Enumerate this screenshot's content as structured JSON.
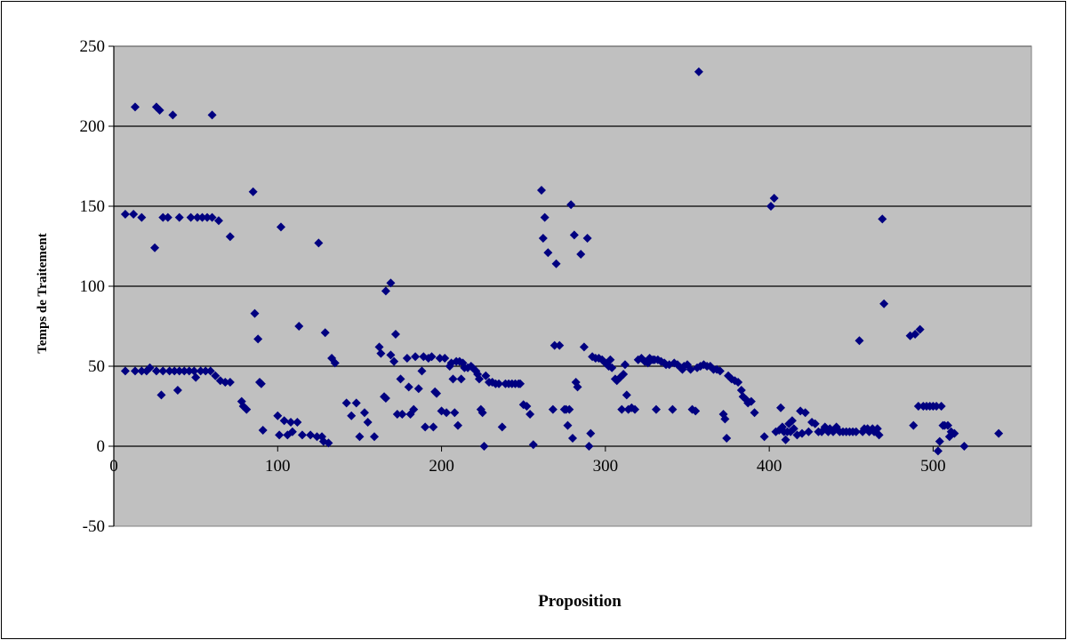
{
  "chart_data": {
    "type": "scatter",
    "title": "",
    "xlabel": "Proposition",
    "ylabel": "Temps de Traitement",
    "xlim": [
      0,
      560
    ],
    "ylim": [
      -50,
      250
    ],
    "x_ticks": [
      0,
      100,
      200,
      300,
      400,
      500
    ],
    "y_ticks": [
      -50,
      0,
      50,
      100,
      150,
      200,
      250
    ],
    "grid": "horizontal",
    "legend": "none",
    "colors": {
      "plot_background": "#c0c0c0",
      "marker": "#000080",
      "gridline": "#000000",
      "frame": "#000000"
    },
    "marker_shape": "diamond",
    "series": [
      {
        "points": [
          [
            7,
            145
          ],
          [
            12,
            145
          ],
          [
            17,
            143
          ],
          [
            25,
            124
          ],
          [
            30,
            143
          ],
          [
            33,
            143
          ],
          [
            40,
            143
          ],
          [
            47,
            143
          ],
          [
            51,
            143
          ],
          [
            54,
            143
          ],
          [
            57,
            143
          ],
          [
            60,
            143
          ],
          [
            64,
            141
          ],
          [
            71,
            131
          ],
          [
            13,
            212
          ],
          [
            26,
            212
          ],
          [
            28,
            210
          ],
          [
            36,
            207
          ],
          [
            60,
            207
          ],
          [
            7,
            47
          ],
          [
            13,
            47
          ],
          [
            17,
            47
          ],
          [
            20,
            47
          ],
          [
            22,
            49
          ],
          [
            26,
            47
          ],
          [
            30,
            47
          ],
          [
            34,
            47
          ],
          [
            37,
            47
          ],
          [
            40,
            47
          ],
          [
            43,
            47
          ],
          [
            46,
            47
          ],
          [
            49,
            47
          ],
          [
            50,
            43
          ],
          [
            53,
            47
          ],
          [
            56,
            47
          ],
          [
            59,
            47
          ],
          [
            62,
            44
          ],
          [
            65,
            41
          ],
          [
            68,
            40
          ],
          [
            71,
            40
          ],
          [
            29,
            32
          ],
          [
            39,
            35
          ],
          [
            78,
            28
          ],
          [
            79,
            25
          ],
          [
            81,
            23
          ],
          [
            85,
            159
          ],
          [
            86,
            83
          ],
          [
            88,
            67
          ],
          [
            89,
            40
          ],
          [
            90,
            39
          ],
          [
            91,
            10
          ],
          [
            102,
            137
          ],
          [
            100,
            19
          ],
          [
            101,
            7
          ],
          [
            104,
            16
          ],
          [
            106,
            7
          ],
          [
            108,
            15
          ],
          [
            109,
            9
          ],
          [
            112,
            15
          ],
          [
            113,
            75
          ],
          [
            115,
            7
          ],
          [
            120,
            7
          ],
          [
            125,
            127
          ],
          [
            124,
            6
          ],
          [
            127,
            6
          ],
          [
            129,
            71
          ],
          [
            128,
            3
          ],
          [
            131,
            2
          ],
          [
            133,
            55
          ],
          [
            135,
            52
          ],
          [
            142,
            27
          ],
          [
            145,
            19
          ],
          [
            148,
            27
          ],
          [
            150,
            6
          ],
          [
            153,
            21
          ],
          [
            155,
            15
          ],
          [
            159,
            6
          ],
          [
            162,
            62
          ],
          [
            163,
            58
          ],
          [
            165,
            31
          ],
          [
            166,
            30
          ],
          [
            166,
            97
          ],
          [
            169,
            102
          ],
          [
            169,
            57
          ],
          [
            171,
            53
          ],
          [
            172,
            70
          ],
          [
            173,
            20
          ],
          [
            175,
            42
          ],
          [
            176,
            20
          ],
          [
            179,
            55
          ],
          [
            180,
            37
          ],
          [
            181,
            20
          ],
          [
            183,
            23
          ],
          [
            184,
            56
          ],
          [
            186,
            36
          ],
          [
            188,
            47
          ],
          [
            189,
            56
          ],
          [
            190,
            12
          ],
          [
            192,
            55
          ],
          [
            194,
            56
          ],
          [
            195,
            12
          ],
          [
            196,
            34
          ],
          [
            197,
            33
          ],
          [
            199,
            55
          ],
          [
            200,
            22
          ],
          [
            202,
            55
          ],
          [
            203,
            21
          ],
          [
            205,
            50
          ],
          [
            206,
            52
          ],
          [
            207,
            42
          ],
          [
            208,
            21
          ],
          [
            209,
            53
          ],
          [
            210,
            13
          ],
          [
            211,
            53
          ],
          [
            212,
            42
          ],
          [
            213,
            52
          ],
          [
            214,
            49
          ],
          [
            216,
            49
          ],
          [
            218,
            50
          ],
          [
            219,
            49
          ],
          [
            221,
            47
          ],
          [
            222,
            45
          ],
          [
            223,
            42
          ],
          [
            224,
            23
          ],
          [
            225,
            21
          ],
          [
            226,
            0
          ],
          [
            227,
            44
          ],
          [
            229,
            40
          ],
          [
            231,
            40
          ],
          [
            233,
            39
          ],
          [
            235,
            39
          ],
          [
            237,
            12
          ],
          [
            239,
            39
          ],
          [
            241,
            39
          ],
          [
            243,
            39
          ],
          [
            245,
            39
          ],
          [
            247,
            39
          ],
          [
            248,
            39
          ],
          [
            250,
            26
          ],
          [
            252,
            25
          ],
          [
            254,
            20
          ],
          [
            256,
            1
          ],
          [
            261,
            160
          ],
          [
            262,
            130
          ],
          [
            263,
            143
          ],
          [
            265,
            121
          ],
          [
            270,
            114
          ],
          [
            268,
            23
          ],
          [
            269,
            63
          ],
          [
            272,
            63
          ],
          [
            275,
            23
          ],
          [
            276,
            23
          ],
          [
            277,
            13
          ],
          [
            278,
            23
          ],
          [
            279,
            151
          ],
          [
            280,
            5
          ],
          [
            281,
            132
          ],
          [
            282,
            40
          ],
          [
            283,
            37
          ],
          [
            285,
            120
          ],
          [
            287,
            62
          ],
          [
            289,
            130
          ],
          [
            290,
            0
          ],
          [
            291,
            8
          ],
          [
            292,
            56
          ],
          [
            294,
            55
          ],
          [
            296,
            55
          ],
          [
            298,
            54
          ],
          [
            300,
            52
          ],
          [
            302,
            50
          ],
          [
            303,
            54
          ],
          [
            304,
            49
          ],
          [
            306,
            42
          ],
          [
            307,
            41
          ],
          [
            309,
            43
          ],
          [
            310,
            23
          ],
          [
            311,
            45
          ],
          [
            312,
            51
          ],
          [
            313,
            32
          ],
          [
            314,
            23
          ],
          [
            316,
            24
          ],
          [
            318,
            23
          ],
          [
            320,
            54
          ],
          [
            322,
            55
          ],
          [
            324,
            53
          ],
          [
            326,
            52
          ],
          [
            327,
            55
          ],
          [
            329,
            54
          ],
          [
            330,
            54
          ],
          [
            331,
            23
          ],
          [
            332,
            54
          ],
          [
            334,
            53
          ],
          [
            336,
            52
          ],
          [
            337,
            51
          ],
          [
            339,
            51
          ],
          [
            341,
            23
          ],
          [
            342,
            52
          ],
          [
            344,
            51
          ],
          [
            346,
            49
          ],
          [
            347,
            48
          ],
          [
            348,
            50
          ],
          [
            350,
            51
          ],
          [
            352,
            48
          ],
          [
            353,
            23
          ],
          [
            355,
            22
          ],
          [
            356,
            49
          ],
          [
            357,
            234
          ],
          [
            358,
            50
          ],
          [
            360,
            51
          ],
          [
            362,
            50
          ],
          [
            364,
            50
          ],
          [
            366,
            48
          ],
          [
            368,
            48
          ],
          [
            370,
            47
          ],
          [
            372,
            20
          ],
          [
            373,
            17
          ],
          [
            374,
            5
          ],
          [
            375,
            44
          ],
          [
            377,
            42
          ],
          [
            379,
            41
          ],
          [
            381,
            40
          ],
          [
            383,
            35
          ],
          [
            384,
            31
          ],
          [
            386,
            29
          ],
          [
            387,
            27
          ],
          [
            389,
            28
          ],
          [
            391,
            21
          ],
          [
            397,
            6
          ],
          [
            401,
            150
          ],
          [
            403,
            155
          ],
          [
            404,
            9
          ],
          [
            406,
            10
          ],
          [
            407,
            24
          ],
          [
            408,
            12
          ],
          [
            409,
            9
          ],
          [
            410,
            4
          ],
          [
            411,
            9
          ],
          [
            412,
            14
          ],
          [
            413,
            9
          ],
          [
            414,
            16
          ],
          [
            415,
            11
          ],
          [
            417,
            7
          ],
          [
            419,
            22
          ],
          [
            420,
            8
          ],
          [
            422,
            21
          ],
          [
            424,
            9
          ],
          [
            426,
            15
          ],
          [
            428,
            14
          ],
          [
            430,
            9
          ],
          [
            432,
            9
          ],
          [
            434,
            12
          ],
          [
            436,
            9
          ],
          [
            437,
            11
          ],
          [
            439,
            9
          ],
          [
            441,
            12
          ],
          [
            443,
            9
          ],
          [
            445,
            9
          ],
          [
            447,
            9
          ],
          [
            449,
            9
          ],
          [
            451,
            9
          ],
          [
            453,
            9
          ],
          [
            455,
            66
          ],
          [
            457,
            9
          ],
          [
            458,
            11
          ],
          [
            460,
            11
          ],
          [
            461,
            9
          ],
          [
            463,
            11
          ],
          [
            464,
            9
          ],
          [
            466,
            11
          ],
          [
            467,
            7
          ],
          [
            469,
            142
          ],
          [
            470,
            89
          ],
          [
            486,
            69
          ],
          [
            488,
            13
          ],
          [
            489,
            70
          ],
          [
            491,
            25
          ],
          [
            492,
            73
          ],
          [
            494,
            25
          ],
          [
            496,
            25
          ],
          [
            498,
            25
          ],
          [
            500,
            25
          ],
          [
            502,
            25
          ],
          [
            503,
            -3
          ],
          [
            504,
            3
          ],
          [
            505,
            25
          ],
          [
            506,
            13
          ],
          [
            507,
            13
          ],
          [
            509,
            13
          ],
          [
            510,
            6
          ],
          [
            511,
            9
          ],
          [
            513,
            8
          ],
          [
            519,
            0
          ],
          [
            540,
            8
          ]
        ]
      }
    ]
  }
}
